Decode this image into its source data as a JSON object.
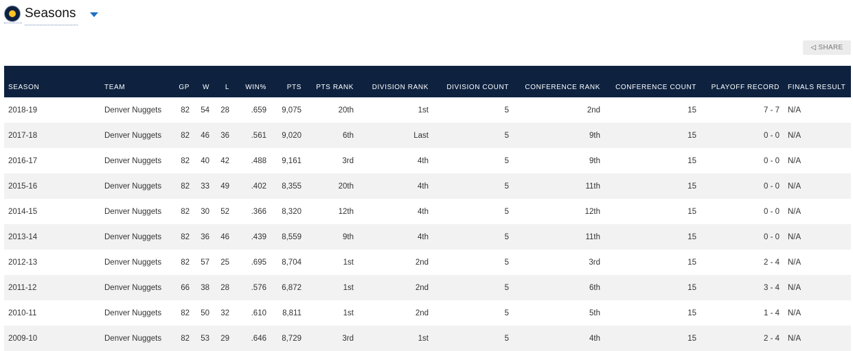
{
  "header": {
    "title": "Seasons"
  },
  "share": {
    "label": "SHARE"
  },
  "table": {
    "columns": [
      "SEASON",
      "TEAM",
      "GP",
      "W",
      "L",
      "WIN%",
      "PTS",
      "PTS RANK",
      "DIVISION RANK",
      "DIVISION COUNT",
      "CONFERENCE RANK",
      "CONFERENCE COUNT",
      "PLAYOFF RECORD",
      "FINALS RESULT"
    ],
    "rows": [
      [
        "2018-19",
        "Denver Nuggets",
        "82",
        "54",
        "28",
        ".659",
        "9,075",
        "20th",
        "1st",
        "5",
        "2nd",
        "15",
        "7 - 7",
        "N/A"
      ],
      [
        "2017-18",
        "Denver Nuggets",
        "82",
        "46",
        "36",
        ".561",
        "9,020",
        "6th",
        "Last",
        "5",
        "9th",
        "15",
        "0 - 0",
        "N/A"
      ],
      [
        "2016-17",
        "Denver Nuggets",
        "82",
        "40",
        "42",
        ".488",
        "9,161",
        "3rd",
        "4th",
        "5",
        "9th",
        "15",
        "0 - 0",
        "N/A"
      ],
      [
        "2015-16",
        "Denver Nuggets",
        "82",
        "33",
        "49",
        ".402",
        "8,355",
        "20th",
        "4th",
        "5",
        "11th",
        "15",
        "0 - 0",
        "N/A"
      ],
      [
        "2014-15",
        "Denver Nuggets",
        "82",
        "30",
        "52",
        ".366",
        "8,320",
        "12th",
        "4th",
        "5",
        "12th",
        "15",
        "0 - 0",
        "N/A"
      ],
      [
        "2013-14",
        "Denver Nuggets",
        "82",
        "36",
        "46",
        ".439",
        "8,559",
        "9th",
        "4th",
        "5",
        "11th",
        "15",
        "0 - 0",
        "N/A"
      ],
      [
        "2012-13",
        "Denver Nuggets",
        "82",
        "57",
        "25",
        ".695",
        "8,704",
        "1st",
        "2nd",
        "5",
        "3rd",
        "15",
        "2 - 4",
        "N/A"
      ],
      [
        "2011-12",
        "Denver Nuggets",
        "66",
        "38",
        "28",
        ".576",
        "6,872",
        "1st",
        "2nd",
        "5",
        "6th",
        "15",
        "3 - 4",
        "N/A"
      ],
      [
        "2010-11",
        "Denver Nuggets",
        "82",
        "50",
        "32",
        ".610",
        "8,811",
        "1st",
        "2nd",
        "5",
        "5th",
        "15",
        "1 - 4",
        "N/A"
      ],
      [
        "2009-10",
        "Denver Nuggets",
        "82",
        "53",
        "29",
        ".646",
        "8,729",
        "3rd",
        "1st",
        "5",
        "4th",
        "15",
        "2 - 4",
        "N/A"
      ]
    ]
  }
}
